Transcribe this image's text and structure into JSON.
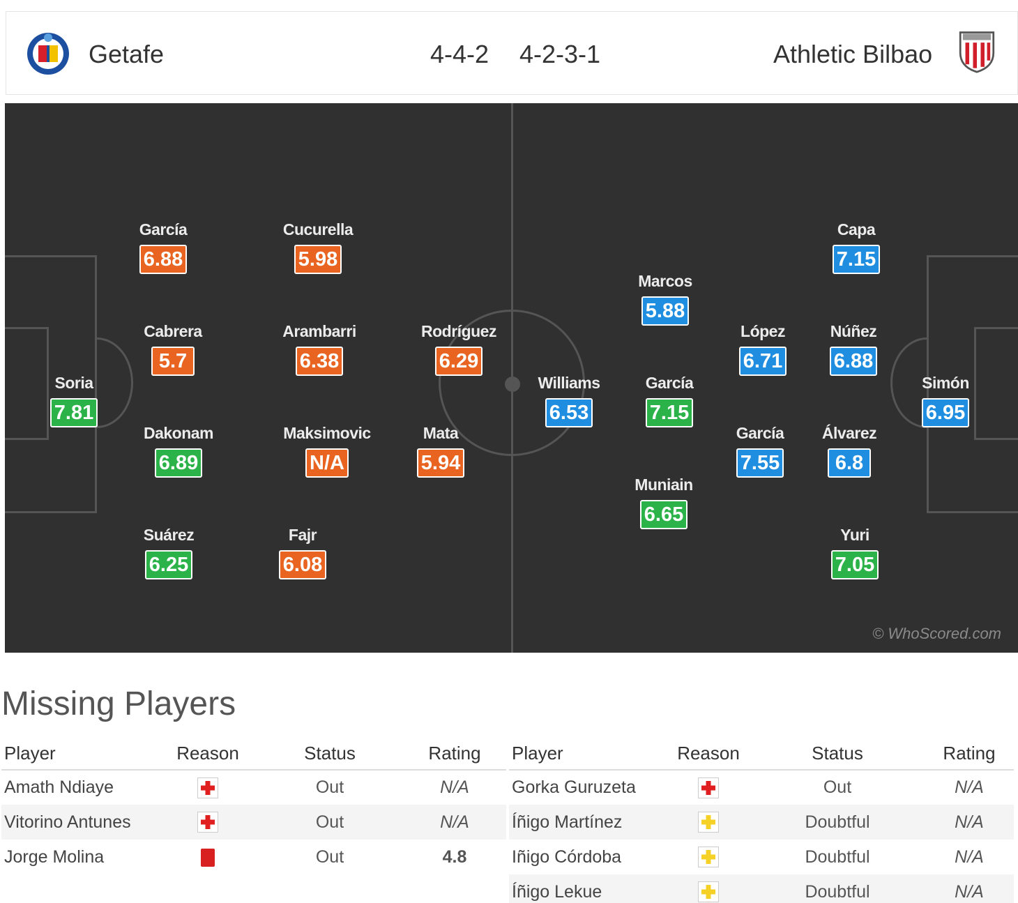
{
  "header": {
    "home_team": "Getafe",
    "home_formation": "4-4-2",
    "away_formation": "4-2-3-1",
    "away_team": "Athletic Bilbao"
  },
  "colors": {
    "pitch": "#303030",
    "orange": "#e86420",
    "green": "#2bb34a",
    "blue": "#1f8de0"
  },
  "home_players": [
    {
      "name": "Soria",
      "rating": "7.81",
      "color": "green"
    },
    {
      "name": "García",
      "rating": "6.88",
      "color": "orange"
    },
    {
      "name": "Cabrera",
      "rating": "5.7",
      "color": "orange"
    },
    {
      "name": "Dakonam",
      "rating": "6.89",
      "color": "green"
    },
    {
      "name": "Suárez",
      "rating": "6.25",
      "color": "green"
    },
    {
      "name": "Cucurella",
      "rating": "5.98",
      "color": "orange"
    },
    {
      "name": "Arambarri",
      "rating": "6.38",
      "color": "orange"
    },
    {
      "name": "Maksimovic",
      "rating": "N/A",
      "color": "orange"
    },
    {
      "name": "Fajr",
      "rating": "6.08",
      "color": "orange"
    },
    {
      "name": "Rodríguez",
      "rating": "6.29",
      "color": "orange"
    },
    {
      "name": "Mata",
      "rating": "5.94",
      "color": "orange"
    }
  ],
  "away_players": [
    {
      "name": "Williams",
      "rating": "6.53",
      "color": "blue"
    },
    {
      "name": "Marcos",
      "rating": "5.88",
      "color": "blue"
    },
    {
      "name": "García",
      "rating": "7.15",
      "color": "green"
    },
    {
      "name": "Muniain",
      "rating": "6.65",
      "color": "green"
    },
    {
      "name": "López",
      "rating": "6.71",
      "color": "blue"
    },
    {
      "name": "García",
      "rating": "7.55",
      "color": "blue"
    },
    {
      "name": "Capa",
      "rating": "7.15",
      "color": "blue"
    },
    {
      "name": "Núñez",
      "rating": "6.88",
      "color": "blue"
    },
    {
      "name": "Álvarez",
      "rating": "6.8",
      "color": "blue"
    },
    {
      "name": "Yuri",
      "rating": "7.05",
      "color": "green"
    },
    {
      "name": "Simón",
      "rating": "6.95",
      "color": "blue"
    }
  ],
  "watermark": "© WhoScored.com",
  "missing": {
    "title": "Missing Players",
    "headers": {
      "player": "Player",
      "reason": "Reason",
      "status": "Status",
      "rating": "Rating"
    },
    "home": [
      {
        "player": "Amath Ndiaye",
        "reason_icon": "injury-icon",
        "status": "Out",
        "rating": "N/A"
      },
      {
        "player": "Vitorino Antunes",
        "reason_icon": "injury-icon",
        "status": "Out",
        "rating": "N/A"
      },
      {
        "player": "Jorge Molina",
        "reason_icon": "red-card-icon",
        "status": "Out",
        "rating": "4.8"
      }
    ],
    "away": [
      {
        "player": "Gorka Guruzeta",
        "reason_icon": "injury-icon",
        "status": "Out",
        "rating": "N/A"
      },
      {
        "player": "Íñigo Martínez",
        "reason_icon": "doubtful-icon",
        "status": "Doubtful",
        "rating": "N/A"
      },
      {
        "player": "Iñigo Córdoba",
        "reason_icon": "doubtful-icon",
        "status": "Doubtful",
        "rating": "N/A"
      },
      {
        "player": "Íñigo Lekue",
        "reason_icon": "doubtful-icon",
        "status": "Doubtful",
        "rating": "N/A"
      }
    ]
  }
}
